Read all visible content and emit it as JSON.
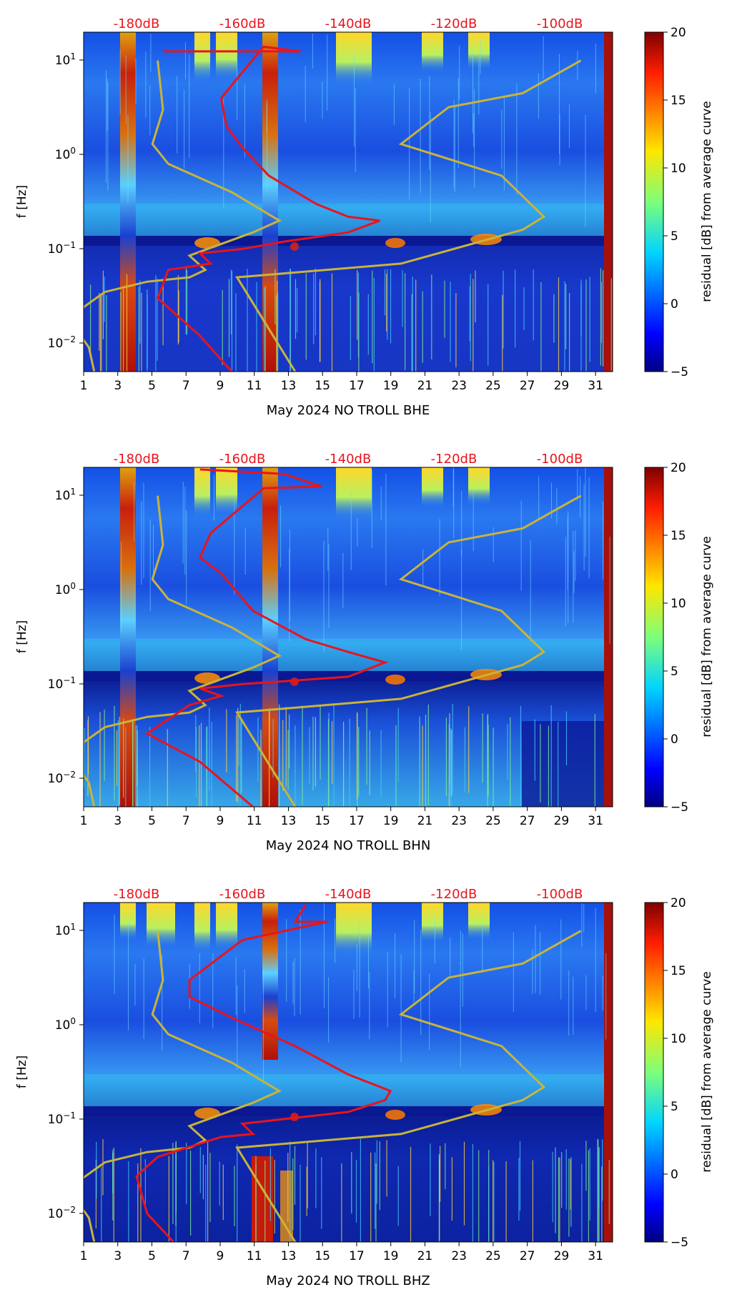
{
  "chart_data": [
    {
      "type": "heatmap",
      "title": "May 2024 NO TROLL  BHE",
      "xlabel": "May 2024 NO TROLL  BHE",
      "ylabel": "f [Hz]",
      "x_ticks": [
        1,
        3,
        5,
        7,
        9,
        11,
        13,
        15,
        17,
        19,
        21,
        23,
        25,
        27,
        29,
        31
      ],
      "xlim": [
        1,
        32
      ],
      "y_ticks": [
        "10^1",
        "10^0",
        "10^-1",
        "10^-2"
      ],
      "ylim": [
        0.005,
        20
      ],
      "top_axis_labels": [
        "-180dB",
        "-160dB",
        "-140dB",
        "-120dB",
        "-100dB"
      ],
      "top_axis_range_db": [
        -190,
        -90
      ],
      "colorbar": {
        "label": "residual [dB] from average curve",
        "ticks": [
          20,
          15,
          10,
          5,
          0,
          -5
        ],
        "range": [
          -5,
          20
        ]
      },
      "hot_days": [
        3.7,
        12.2
      ],
      "series": [
        {
          "name": "psd_curve",
          "color": "#e8141c",
          "points_db": [
            [
              -175,
              12.5
            ],
            [
              -149,
              12.5
            ],
            [
              -156,
              14
            ],
            [
              -164,
              4
            ],
            [
              -163,
              2
            ],
            [
              -160,
              1.2
            ],
            [
              -155,
              0.6
            ],
            [
              -146,
              0.3
            ],
            [
              -140,
              0.22
            ],
            [
              -134,
              0.2
            ],
            [
              -140,
              0.15
            ],
            [
              -152,
              0.12
            ],
            [
              -160,
              0.1
            ],
            [
              -168,
              0.09
            ],
            [
              -166,
              0.07
            ],
            [
              -174,
              0.06
            ],
            [
              -176,
              0.03
            ],
            [
              -168,
              0.012
            ],
            [
              -162,
              0.005
            ]
          ]
        },
        {
          "name": "noise_model_low",
          "color": "#c8b43a",
          "points_db": [
            [
              -188,
              0.005
            ],
            [
              -189,
              0.009
            ],
            [
              -191,
              0.013
            ],
            [
              -191,
              0.022
            ],
            [
              -186,
              0.035
            ],
            [
              -178,
              0.045
            ],
            [
              -170,
              0.05
            ],
            [
              -167,
              0.06
            ],
            [
              -170,
              0.085
            ],
            [
              -158,
              0.15
            ],
            [
              -153,
              0.2
            ],
            [
              -162,
              0.4
            ],
            [
              -174,
              0.8
            ],
            [
              -177,
              1.3
            ],
            [
              -175,
              3
            ],
            [
              -176,
              10
            ]
          ]
        },
        {
          "name": "noise_model_high",
          "color": "#c8b43a",
          "points_db": [
            [
              -150,
              0.005
            ],
            [
              -161,
              0.05
            ],
            [
              -130,
              0.07
            ],
            [
              -107,
              0.16
            ],
            [
              -103,
              0.22
            ],
            [
              -111,
              0.6
            ],
            [
              -130,
              1.3
            ],
            [
              -121,
              3.2
            ],
            [
              -107,
              4.5
            ],
            [
              -96,
              10
            ]
          ]
        }
      ]
    },
    {
      "type": "heatmap",
      "title": "May 2024 NO TROLL  BHN",
      "xlabel": "May 2024 NO TROLL  BHN",
      "ylabel": "f [Hz]",
      "x_ticks": [
        1,
        3,
        5,
        7,
        9,
        11,
        13,
        15,
        17,
        19,
        21,
        23,
        25,
        27,
        29,
        31
      ],
      "xlim": [
        1,
        32
      ],
      "y_ticks": [
        "10^1",
        "10^0",
        "10^-1",
        "10^-2"
      ],
      "ylim": [
        0.005,
        20
      ],
      "top_axis_labels": [
        "-180dB",
        "-160dB",
        "-140dB",
        "-120dB",
        "-100dB"
      ],
      "top_axis_range_db": [
        -190,
        -90
      ],
      "colorbar": {
        "label": "residual [dB] from average curve",
        "ticks": [
          20,
          15,
          10,
          5,
          0,
          -5
        ],
        "range": [
          -5,
          20
        ]
      },
      "hot_days": [
        3.7,
        12.2
      ],
      "series": [
        {
          "name": "psd_curve",
          "color": "#e8141c",
          "points_db": [
            [
              -168,
              19
            ],
            [
              -152,
              17
            ],
            [
              -145,
              12.5
            ],
            [
              -156,
              12
            ],
            [
              -166,
              4
            ],
            [
              -168,
              2.2
            ],
            [
              -164,
              1.5
            ],
            [
              -158,
              0.6
            ],
            [
              -148,
              0.3
            ],
            [
              -140,
              0.22
            ],
            [
              -133,
              0.17
            ],
            [
              -140,
              0.12
            ],
            [
              -160,
              0.1
            ],
            [
              -168,
              0.09
            ],
            [
              -164,
              0.075
            ],
            [
              -170,
              0.06
            ],
            [
              -178,
              0.03
            ],
            [
              -168,
              0.015
            ],
            [
              -158,
              0.005
            ]
          ]
        },
        {
          "name": "noise_model_low",
          "color": "#c8b43a",
          "points_db": [
            [
              -188,
              0.005
            ],
            [
              -189,
              0.009
            ],
            [
              -191,
              0.013
            ],
            [
              -191,
              0.022
            ],
            [
              -186,
              0.035
            ],
            [
              -178,
              0.045
            ],
            [
              -170,
              0.05
            ],
            [
              -167,
              0.06
            ],
            [
              -170,
              0.085
            ],
            [
              -158,
              0.15
            ],
            [
              -153,
              0.2
            ],
            [
              -162,
              0.4
            ],
            [
              -174,
              0.8
            ],
            [
              -177,
              1.3
            ],
            [
              -175,
              3
            ],
            [
              -176,
              10
            ]
          ]
        },
        {
          "name": "noise_model_high",
          "color": "#c8b43a",
          "points_db": [
            [
              -150,
              0.005
            ],
            [
              -161,
              0.05
            ],
            [
              -130,
              0.07
            ],
            [
              -107,
              0.16
            ],
            [
              -103,
              0.22
            ],
            [
              -111,
              0.6
            ],
            [
              -130,
              1.3
            ],
            [
              -121,
              3.2
            ],
            [
              -107,
              4.5
            ],
            [
              -96,
              10
            ]
          ]
        }
      ]
    },
    {
      "type": "heatmap",
      "title": "May 2024 NO TROLL  BHZ",
      "xlabel": "May 2024 NO TROLL  BHZ",
      "ylabel": "f [Hz]",
      "x_ticks": [
        1,
        3,
        5,
        7,
        9,
        11,
        13,
        15,
        17,
        19,
        21,
        23,
        25,
        27,
        29,
        31
      ],
      "xlim": [
        1,
        32
      ],
      "y_ticks": [
        "10^1",
        "10^0",
        "10^-1",
        "10^-2"
      ],
      "ylim": [
        0.005,
        20
      ],
      "top_axis_labels": [
        "-180dB",
        "-160dB",
        "-140dB",
        "-120dB",
        "-100dB"
      ],
      "top_axis_range_db": [
        -190,
        -90
      ],
      "colorbar": {
        "label": "residual [dB] from average curve",
        "ticks": [
          20,
          15,
          10,
          5,
          0,
          -5
        ],
        "range": [
          -5,
          20
        ]
      },
      "hot_days": [
        11.5,
        12.2
      ],
      "series": [
        {
          "name": "psd_curve",
          "color": "#e8141c",
          "points_db": [
            [
              -148,
              19
            ],
            [
              -150,
              12.5
            ],
            [
              -144,
              12.5
            ],
            [
              -160,
              8
            ],
            [
              -170,
              3
            ],
            [
              -170,
              2
            ],
            [
              -162,
              1.2
            ],
            [
              -150,
              0.6
            ],
            [
              -140,
              0.3
            ],
            [
              -132,
              0.2
            ],
            [
              -133,
              0.16
            ],
            [
              -140,
              0.12
            ],
            [
              -160,
              0.09
            ],
            [
              -158,
              0.07
            ],
            [
              -164,
              0.065
            ],
            [
              -176,
              0.04
            ],
            [
              -180,
              0.025
            ],
            [
              -178,
              0.01
            ],
            [
              -173,
              0.005
            ]
          ]
        },
        {
          "name": "noise_model_low",
          "color": "#c8b43a",
          "points_db": [
            [
              -188,
              0.005
            ],
            [
              -189,
              0.009
            ],
            [
              -191,
              0.013
            ],
            [
              -191,
              0.022
            ],
            [
              -186,
              0.035
            ],
            [
              -178,
              0.045
            ],
            [
              -170,
              0.05
            ],
            [
              -167,
              0.06
            ],
            [
              -170,
              0.085
            ],
            [
              -158,
              0.15
            ],
            [
              -153,
              0.2
            ],
            [
              -162,
              0.4
            ],
            [
              -174,
              0.8
            ],
            [
              -177,
              1.3
            ],
            [
              -175,
              3
            ],
            [
              -176,
              10
            ]
          ]
        },
        {
          "name": "noise_model_high",
          "color": "#c8b43a",
          "points_db": [
            [
              -150,
              0.005
            ],
            [
              -161,
              0.05
            ],
            [
              -130,
              0.07
            ],
            [
              -107,
              0.16
            ],
            [
              -103,
              0.22
            ],
            [
              -111,
              0.6
            ],
            [
              -130,
              1.3
            ],
            [
              -121,
              3.2
            ],
            [
              -107,
              4.5
            ],
            [
              -96,
              10
            ]
          ]
        }
      ]
    }
  ],
  "colors": {
    "curve": "#e8141c",
    "model": "#c8b43a",
    "top_labels": "#e8141c",
    "background_low": "#0a1aa8",
    "hot": "#c0140c"
  }
}
